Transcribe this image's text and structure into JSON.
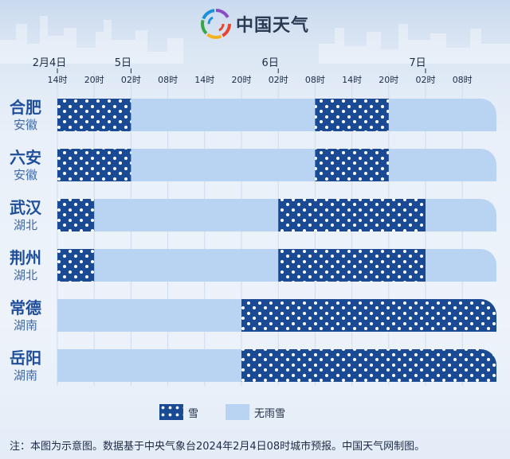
{
  "header": {
    "title": "中国天气"
  },
  "legend": {
    "snow": "雪",
    "none": "无雨雪"
  },
  "footnote": "注：本图为示意图。数据基于中央气象台2024年2月4日08时城市预报。中国天气网制图。",
  "colors": {
    "snow": "#1a4a93",
    "none": "#b9d3f3",
    "city": "#1f4e9c",
    "grid": "#cfdcee"
  },
  "chart_data": {
    "type": "timeline",
    "date_labels": [
      {
        "label": "2月4日",
        "tick": 0
      },
      {
        "label": "5日",
        "tick": 2
      },
      {
        "label": "6日",
        "tick": 6
      },
      {
        "label": "7日",
        "tick": 10
      }
    ],
    "ticks": [
      "14时",
      "20时",
      "02时",
      "08时",
      "14时",
      "20时",
      "02时",
      "08时",
      "14时",
      "20时",
      "02时",
      "08时"
    ],
    "rows": [
      {
        "city": "合肥",
        "province": "安徽",
        "snow": [
          [
            0,
            2
          ],
          [
            7,
            9
          ]
        ]
      },
      {
        "city": "六安",
        "province": "安徽",
        "snow": [
          [
            0,
            2
          ],
          [
            7,
            9
          ]
        ]
      },
      {
        "city": "武汉",
        "province": "湖北",
        "snow": [
          [
            0,
            1
          ],
          [
            6,
            10
          ]
        ]
      },
      {
        "city": "荆州",
        "province": "湖北",
        "snow": [
          [
            0,
            1
          ],
          [
            6,
            10
          ]
        ]
      },
      {
        "city": "常德",
        "province": "湖南",
        "snow": [
          [
            5,
            12
          ]
        ]
      },
      {
        "city": "岳阳",
        "province": "湖南",
        "snow": [
          [
            5,
            12
          ]
        ]
      }
    ],
    "range": [
      0,
      12
    ]
  }
}
